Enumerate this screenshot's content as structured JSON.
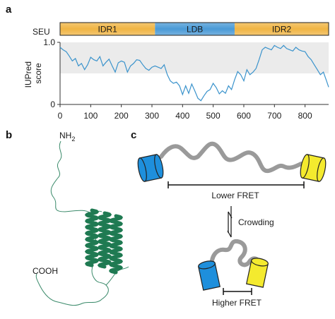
{
  "panels": {
    "a": {
      "letter": "a",
      "protein_name": "SEU",
      "domains": [
        {
          "label": "IDR1",
          "start": 0,
          "end": 310,
          "color": "#f0b544"
        },
        {
          "label": "LDB",
          "start": 310,
          "end": 570,
          "color": "#4a9ad6"
        },
        {
          "label": "IDR2",
          "start": 570,
          "end": 877,
          "color": "#f0b544"
        }
      ]
    },
    "b": {
      "letter": "b",
      "nterm_label": "NH",
      "nterm_subscript": "2",
      "cterm_label": "COOH"
    },
    "c": {
      "letter": "c",
      "lower_label": "Lower FRET",
      "arrow_label": "Crowding",
      "higher_label": "Higher FRET"
    }
  },
  "colors": {
    "trace": "#3a93cc",
    "shade": "#ebebeb",
    "helix": "#1f7a52",
    "coil": "#3a8a6a",
    "linker": "#9a9a9a",
    "fp_blue": "#1e8fdc",
    "fp_yellow": "#f4ea2e"
  },
  "chart_data": {
    "type": "line",
    "title": "",
    "xlabel": "",
    "ylabel": "IUPred score",
    "xlim": [
      0,
      877
    ],
    "ylim": [
      0,
      1.0
    ],
    "xticks": [
      "0",
      "100",
      "200",
      "300",
      "400",
      "500",
      "600",
      "700",
      "800"
    ],
    "yticks": [
      "0",
      "1.0"
    ],
    "shaded_band": [
      0.5,
      1.0
    ],
    "series": [
      {
        "x": [
          0,
          10,
          20,
          30,
          40,
          50,
          60,
          70,
          80,
          90,
          100,
          110,
          120,
          130,
          140,
          150,
          160,
          170,
          180,
          190,
          200,
          210,
          220,
          230,
          240,
          250,
          260,
          270,
          280,
          290,
          300,
          310,
          320,
          330,
          340,
          350,
          360,
          370,
          380,
          390,
          400,
          410,
          420,
          430,
          440,
          450,
          460,
          470,
          480,
          490,
          500,
          510,
          520,
          530,
          540,
          550,
          560,
          570,
          580,
          590,
          600,
          610,
          620,
          630,
          640,
          650,
          660,
          670,
          680,
          690,
          700,
          710,
          720,
          730,
          740,
          750,
          760,
          770,
          780,
          790,
          800,
          810,
          820,
          830,
          840,
          850,
          860,
          870,
          877
        ],
        "y": [
          0.92,
          0.88,
          0.85,
          0.78,
          0.7,
          0.74,
          0.62,
          0.66,
          0.56,
          0.64,
          0.76,
          0.72,
          0.7,
          0.77,
          0.62,
          0.68,
          0.73,
          0.62,
          0.52,
          0.67,
          0.7,
          0.68,
          0.52,
          0.62,
          0.66,
          0.72,
          0.71,
          0.64,
          0.58,
          0.55,
          0.6,
          0.62,
          0.6,
          0.58,
          0.64,
          0.48,
          0.38,
          0.34,
          0.36,
          0.3,
          0.16,
          0.3,
          0.18,
          0.33,
          0.22,
          0.1,
          0.06,
          0.14,
          0.21,
          0.24,
          0.34,
          0.27,
          0.17,
          0.22,
          0.18,
          0.3,
          0.24,
          0.4,
          0.53,
          0.48,
          0.38,
          0.56,
          0.48,
          0.52,
          0.58,
          0.72,
          0.88,
          0.92,
          0.9,
          0.88,
          0.95,
          0.92,
          0.9,
          0.95,
          0.9,
          0.88,
          0.86,
          0.92,
          0.88,
          0.86,
          0.85,
          0.77,
          0.72,
          0.64,
          0.56,
          0.48,
          0.52,
          0.38,
          0.28
        ]
      }
    ]
  }
}
